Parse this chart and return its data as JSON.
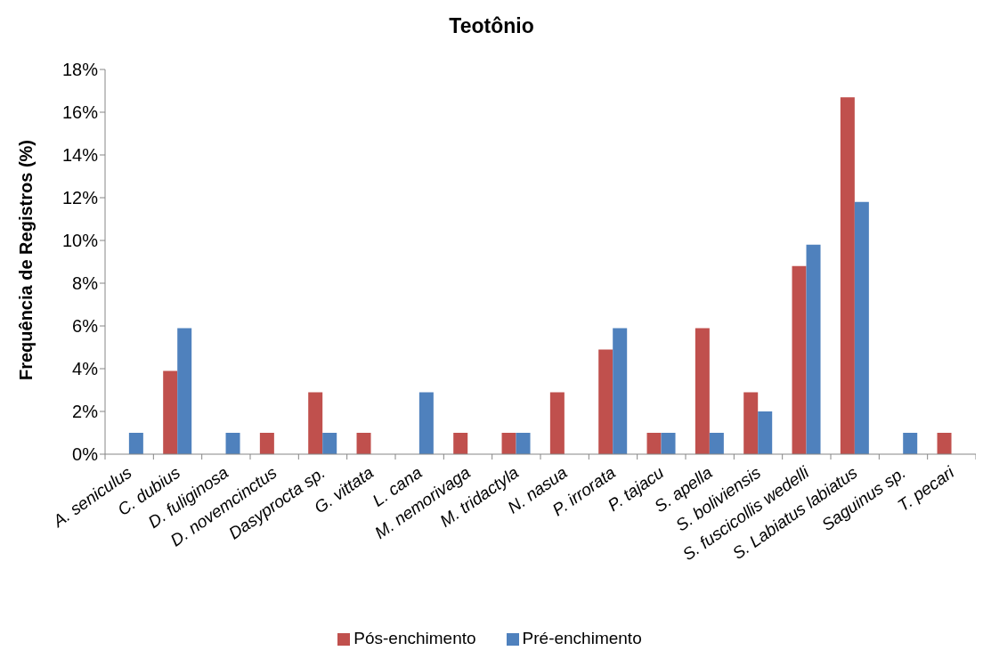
{
  "chart_data": {
    "type": "bar",
    "title": "Teotônio",
    "ylabel": "Frequência de Registros (%)",
    "categories": [
      "A. seniculus",
      "C. dubius",
      "D. fuliginosa",
      "D. novemcinctus",
      "Dasyprocta sp.",
      "G. vittata",
      "L. cana",
      "M. nemorivaga",
      "M. tridactyla",
      "N. nasua",
      "P. irrorata",
      "P. tajacu",
      "S. apella",
      "S. boliviensis",
      "S. fuscicollis wedelli",
      "S. Labiatus labiatus",
      "Saguinus sp.",
      "T. pecari"
    ],
    "series": [
      {
        "name": "Pós-enchimento",
        "color": "#c0504d",
        "values": [
          0,
          3.9,
          0,
          1.0,
          2.9,
          1.0,
          0,
          1.0,
          1.0,
          2.9,
          4.9,
          1.0,
          5.9,
          2.9,
          8.8,
          16.7,
          0,
          1.0
        ]
      },
      {
        "name": "Pré-enchimento",
        "color": "#4f81bd",
        "values": [
          1.0,
          5.9,
          1.0,
          0,
          1.0,
          0,
          2.9,
          0,
          1.0,
          0,
          5.9,
          1.0,
          1.0,
          2.0,
          9.8,
          11.8,
          1.0,
          0
        ]
      }
    ],
    "ylim": [
      0,
      18
    ],
    "yticks": [
      {
        "value": 0,
        "label": "0%"
      },
      {
        "value": 2,
        "label": "2%"
      },
      {
        "value": 4,
        "label": "4%"
      },
      {
        "value": 6,
        "label": "6%"
      },
      {
        "value": 8,
        "label": "8%"
      },
      {
        "value": 10,
        "label": "10%"
      },
      {
        "value": 12,
        "label": "12%"
      },
      {
        "value": 14,
        "label": "14%"
      },
      {
        "value": 16,
        "label": "16%"
      },
      {
        "value": 18,
        "label": "18%"
      }
    ],
    "legend": "bottom"
  }
}
